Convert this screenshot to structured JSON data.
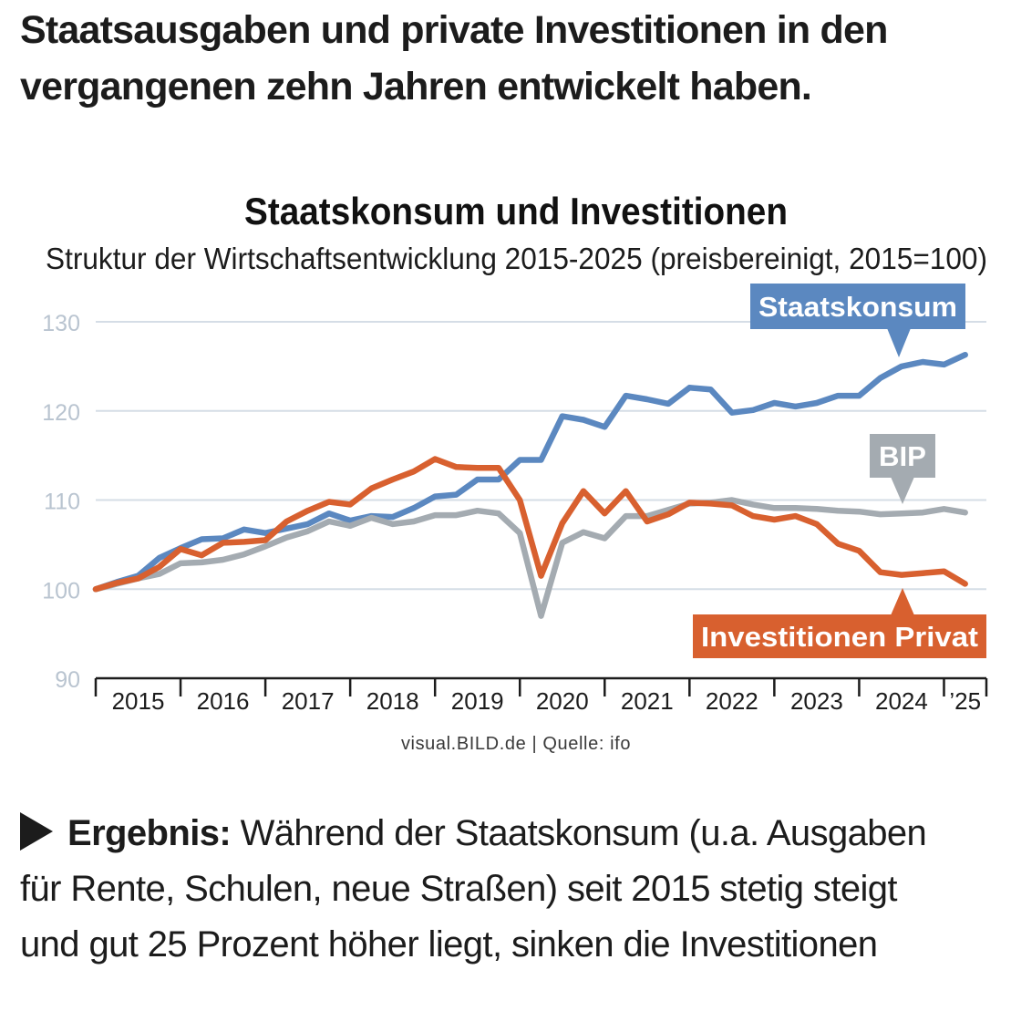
{
  "article": {
    "headline_line1": "Staatsausgaben und private Investitionen in den",
    "headline_line2": "vergangenen zehn Jahren entwickelt haben.",
    "body_lead": "Ergebnis:",
    "body_line1": " Während der Staatskonsum (u.a. Ausgaben",
    "body_line2": "für Rente, Schulen, neue Straßen) seit 2015 stetig steigt",
    "body_line3": "und gut 25 Prozent höher liegt, sinken die Investitionen"
  },
  "colors": {
    "staat": "#5b88c0",
    "bip": "#a4abb1",
    "invest": "#d8602f",
    "grid": "#d5dde6",
    "ytick": "#b9c4d0"
  },
  "chart_data": {
    "type": "line",
    "title": "Staatskonsum und Investitionen",
    "subtitle": "Struktur der Wirtschaftsentwicklung 2015-2025 (preisbereinigt, 2015=100)",
    "source": "visual.BILD.de | Quelle: ifo",
    "ylim": [
      90,
      130
    ],
    "yticks": [
      "90",
      "100",
      "110",
      "120",
      "130"
    ],
    "grid": true,
    "x_start": 2015.0,
    "x_end": 2025.5,
    "year_labels": [
      "2015",
      "2016",
      "2017",
      "2018",
      "2019",
      "2020",
      "2021",
      "2022",
      "2023",
      "2024",
      "’25"
    ],
    "series": [
      {
        "name": "Staatskonsum",
        "label": "Staatskonsum",
        "color_key": "staat",
        "x": [
          2015.0,
          2015.25,
          2015.5,
          2015.75,
          2016.0,
          2016.25,
          2016.5,
          2016.75,
          2017.0,
          2017.25,
          2017.5,
          2017.75,
          2018.0,
          2018.25,
          2018.5,
          2018.75,
          2019.0,
          2019.25,
          2019.5,
          2019.75,
          2020.0,
          2020.25,
          2020.5,
          2020.75,
          2021.0,
          2021.25,
          2021.5,
          2021.75,
          2022.0,
          2022.25,
          2022.5,
          2022.75,
          2023.0,
          2023.25,
          2023.5,
          2023.75,
          2024.0,
          2024.25,
          2024.5,
          2024.75,
          2025.0,
          2025.25
        ],
        "values": [
          100,
          100.8,
          101.5,
          103.5,
          104.6,
          105.6,
          105.7,
          106.7,
          106.3,
          106.8,
          107.3,
          108.5,
          107.7,
          108.2,
          108.1,
          109.1,
          110.4,
          110.6,
          112.3,
          112.3,
          114.5,
          114.5,
          119.4,
          119.0,
          118.2,
          121.7,
          121.3,
          120.8,
          122.6,
          122.4,
          119.8,
          120.1,
          120.9,
          120.5,
          120.9,
          121.7,
          121.7,
          123.7,
          125.0,
          125.5,
          125.2,
          126.3
        ]
      },
      {
        "name": "BIP",
        "label": "BIP",
        "color_key": "bip",
        "x": [
          2015.0,
          2015.25,
          2015.5,
          2015.75,
          2016.0,
          2016.25,
          2016.5,
          2016.75,
          2017.0,
          2017.25,
          2017.5,
          2017.75,
          2018.0,
          2018.25,
          2018.5,
          2018.75,
          2019.0,
          2019.25,
          2019.5,
          2019.75,
          2020.0,
          2020.25,
          2020.5,
          2020.75,
          2021.0,
          2021.25,
          2021.5,
          2021.75,
          2022.0,
          2022.25,
          2022.5,
          2022.75,
          2023.0,
          2023.25,
          2023.5,
          2023.75,
          2024.0,
          2024.25,
          2024.5,
          2024.75,
          2025.0,
          2025.25
        ],
        "values": [
          100,
          100.6,
          101.2,
          101.7,
          102.9,
          103.0,
          103.3,
          103.9,
          104.8,
          105.8,
          106.5,
          107.6,
          107.1,
          108.0,
          107.3,
          107.6,
          108.3,
          108.3,
          108.8,
          108.5,
          106.3,
          97.0,
          105.2,
          106.4,
          105.7,
          108.2,
          108.2,
          108.9,
          109.6,
          109.7,
          110.0,
          109.5,
          109.1,
          109.1,
          109.0,
          108.8,
          108.7,
          108.4,
          108.5,
          108.6,
          109.0,
          108.6
        ]
      },
      {
        "name": "Investitionen Privat",
        "label": "Investitionen Privat",
        "color_key": "invest",
        "x": [
          2015.0,
          2015.25,
          2015.5,
          2015.75,
          2016.0,
          2016.25,
          2016.5,
          2016.75,
          2017.0,
          2017.25,
          2017.5,
          2017.75,
          2018.0,
          2018.25,
          2018.5,
          2018.75,
          2019.0,
          2019.25,
          2019.5,
          2019.75,
          2020.0,
          2020.25,
          2020.5,
          2020.75,
          2021.0,
          2021.25,
          2021.5,
          2021.75,
          2022.0,
          2022.25,
          2022.5,
          2022.75,
          2023.0,
          2023.25,
          2023.5,
          2023.75,
          2024.0,
          2024.25,
          2024.5,
          2024.75,
          2025.0,
          2025.25
        ],
        "values": [
          100,
          100.7,
          101.2,
          102.5,
          104.5,
          103.8,
          105.2,
          105.3,
          105.5,
          107.6,
          108.8,
          109.8,
          109.5,
          111.3,
          112.3,
          113.2,
          114.6,
          113.7,
          113.6,
          113.6,
          110.0,
          101.5,
          107.4,
          111.0,
          108.5,
          111.0,
          107.6,
          108.4,
          109.7,
          109.6,
          109.4,
          108.2,
          107.8,
          108.2,
          107.3,
          105.1,
          104.3,
          101.9,
          101.6,
          101.8,
          102.0,
          100.6
        ]
      }
    ]
  }
}
